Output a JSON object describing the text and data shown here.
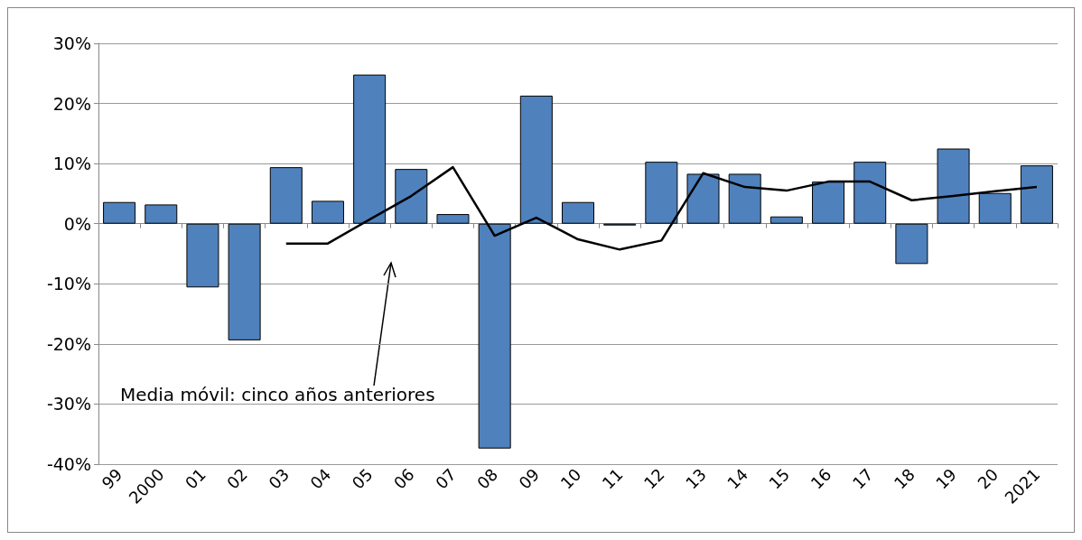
{
  "chart_data": {
    "type": "bar",
    "categories": [
      "99",
      "2000",
      "01",
      "02",
      "03",
      "04",
      "05",
      "06",
      "07",
      "08",
      "09",
      "10",
      "11",
      "12",
      "13",
      "14",
      "15",
      "16",
      "17",
      "18",
      "19",
      "20",
      "2021"
    ],
    "series": [
      {
        "color": "#4f81bd",
        "values": [
          3.6,
          3.2,
          -10.6,
          -19.4,
          9.4,
          3.8,
          24.8,
          9.1,
          1.6,
          -37.4,
          21.3,
          3.6,
          -0.3,
          10.3,
          8.3,
          8.3,
          1.2,
          7.0,
          10.3,
          -6.7,
          12.5,
          5.1,
          9.7
        ]
      },
      {
        "type": "line",
        "color": "#000000",
        "values": [
          null,
          null,
          null,
          null,
          -3.3,
          -3.3,
          0.7,
          4.6,
          9.4,
          -2.0,
          1.0,
          -2.6,
          -4.3,
          -2.8,
          8.4,
          6.1,
          5.5,
          7.0,
          7.0,
          3.9,
          4.6,
          5.4,
          6.1
        ]
      }
    ],
    "ylim": [
      -40,
      30
    ],
    "yticks": [
      {
        "value": -40,
        "label": "-40%"
      },
      {
        "value": -30,
        "label": "-30%"
      },
      {
        "value": -20,
        "label": "-20%"
      },
      {
        "value": -10,
        "label": "-10%"
      },
      {
        "value": 0,
        "label": "0%"
      },
      {
        "value": 10,
        "label": "10%"
      },
      {
        "value": 20,
        "label": "20%"
      },
      {
        "value": 30,
        "label": "30%"
      }
    ],
    "grid": "y",
    "marker": "none",
    "annotations": [
      "Media móvil: cinco años anteriores"
    ]
  }
}
